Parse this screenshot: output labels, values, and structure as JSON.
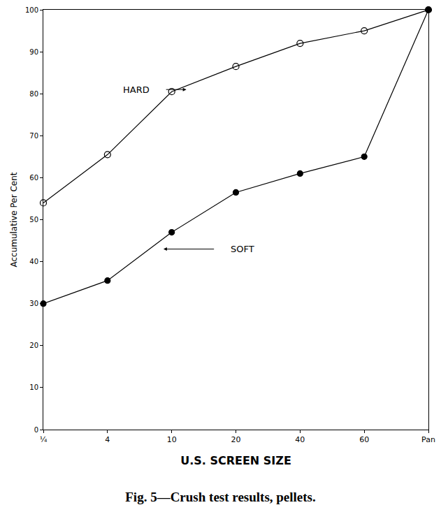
{
  "chart_data": {
    "type": "line",
    "title": "Fig. 5—Crush test results, pellets.",
    "x_label": "U.S. SCREEN SIZE",
    "y_label": "Accumulative Per Cent",
    "categories": [
      "¼",
      "4",
      "10",
      "20",
      "40",
      "60",
      "Pan"
    ],
    "series": [
      {
        "name": "HARD",
        "color": "#000000",
        "marker": "open circle",
        "line_style": "solid",
        "values": [
          54,
          65.5,
          80.5,
          86.5,
          92,
          95,
          100
        ]
      },
      {
        "name": "SOFT",
        "color": "#000000",
        "marker": "filled circle",
        "line_style": "solid",
        "values": [
          30,
          35.5,
          47,
          56.5,
          61,
          65,
          100
        ]
      }
    ],
    "ylim": [
      0,
      100
    ],
    "yticks": [
      0,
      10,
      20,
      30,
      40,
      50,
      60,
      70,
      80,
      90,
      100
    ],
    "grid": false,
    "tick_labels": true
  }
}
